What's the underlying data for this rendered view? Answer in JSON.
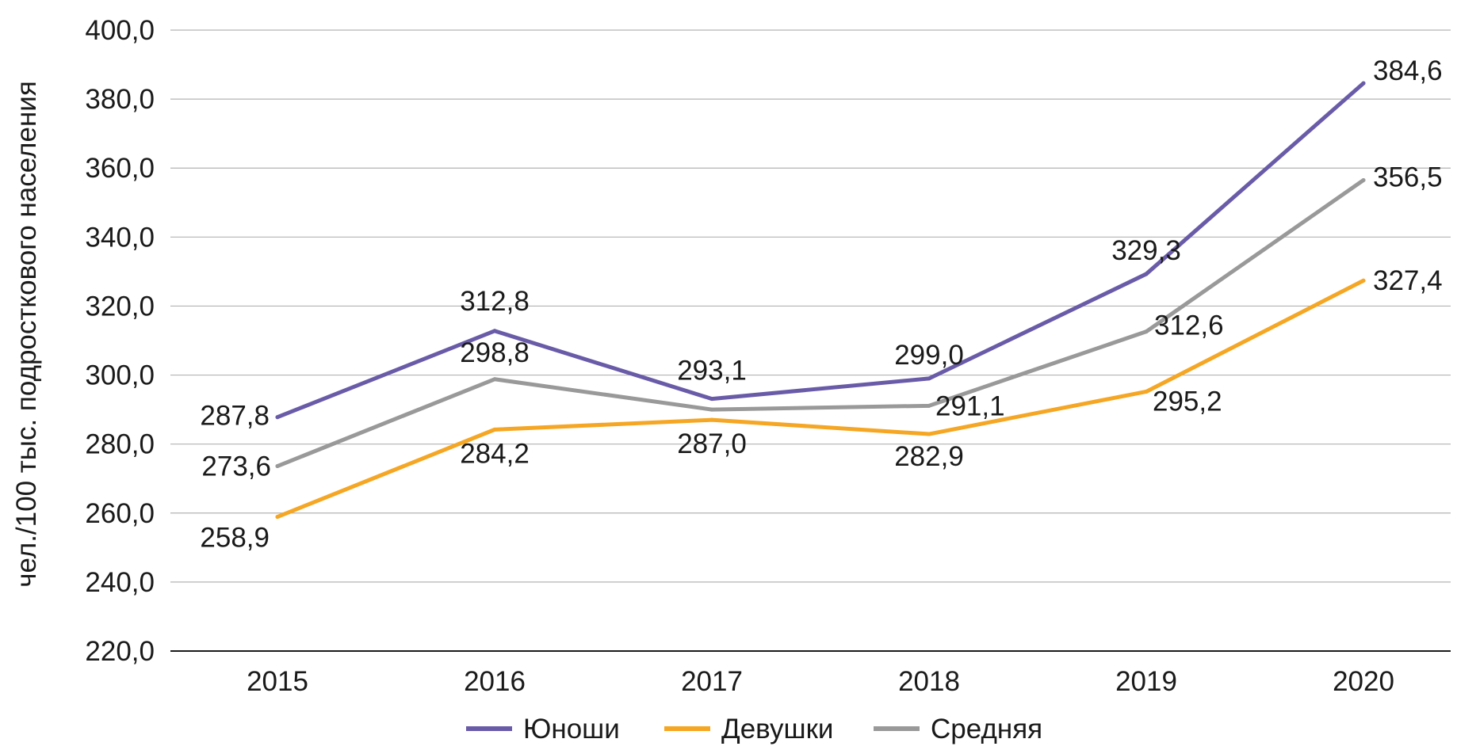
{
  "chart_data": {
    "type": "line",
    "title": "",
    "xlabel": "",
    "ylabel": "чел./100 тыс. подросткового населения",
    "ylim": [
      220,
      400
    ],
    "yticks": [
      220,
      240,
      260,
      280,
      300,
      320,
      340,
      360,
      380,
      400
    ],
    "ytick_labels": [
      "220,0",
      "240,0",
      "260,0",
      "280,0",
      "300,0",
      "320,0",
      "340,0",
      "360,0",
      "380,0",
      "400,0"
    ],
    "categories": [
      "2015",
      "2016",
      "2017",
      "2018",
      "2019",
      "2020"
    ],
    "grid": true,
    "legend_position": "bottom",
    "series": [
      {
        "name": "Юноши",
        "color": "#6a5ba8",
        "values": [
          287.8,
          312.8,
          293.1,
          299.0,
          329.3,
          384.6
        ],
        "labels": [
          "287,8",
          "312,8",
          "293,1",
          "299,0",
          "329,3",
          "384,6"
        ]
      },
      {
        "name": "Девушки",
        "color": "#f5a623",
        "values": [
          258.9,
          284.2,
          287.0,
          282.9,
          295.2,
          327.4
        ],
        "labels": [
          "258,9",
          "284,2",
          "287,0",
          "282,9",
          "295,2",
          "327,4"
        ]
      },
      {
        "name": "Средняя",
        "color": "#999999",
        "values": [
          273.6,
          298.8,
          290.0,
          291.1,
          312.6,
          356.5
        ],
        "labels": [
          "273,6",
          "298,8",
          "",
          "291,1",
          "312,6",
          "356,5"
        ]
      }
    ]
  }
}
